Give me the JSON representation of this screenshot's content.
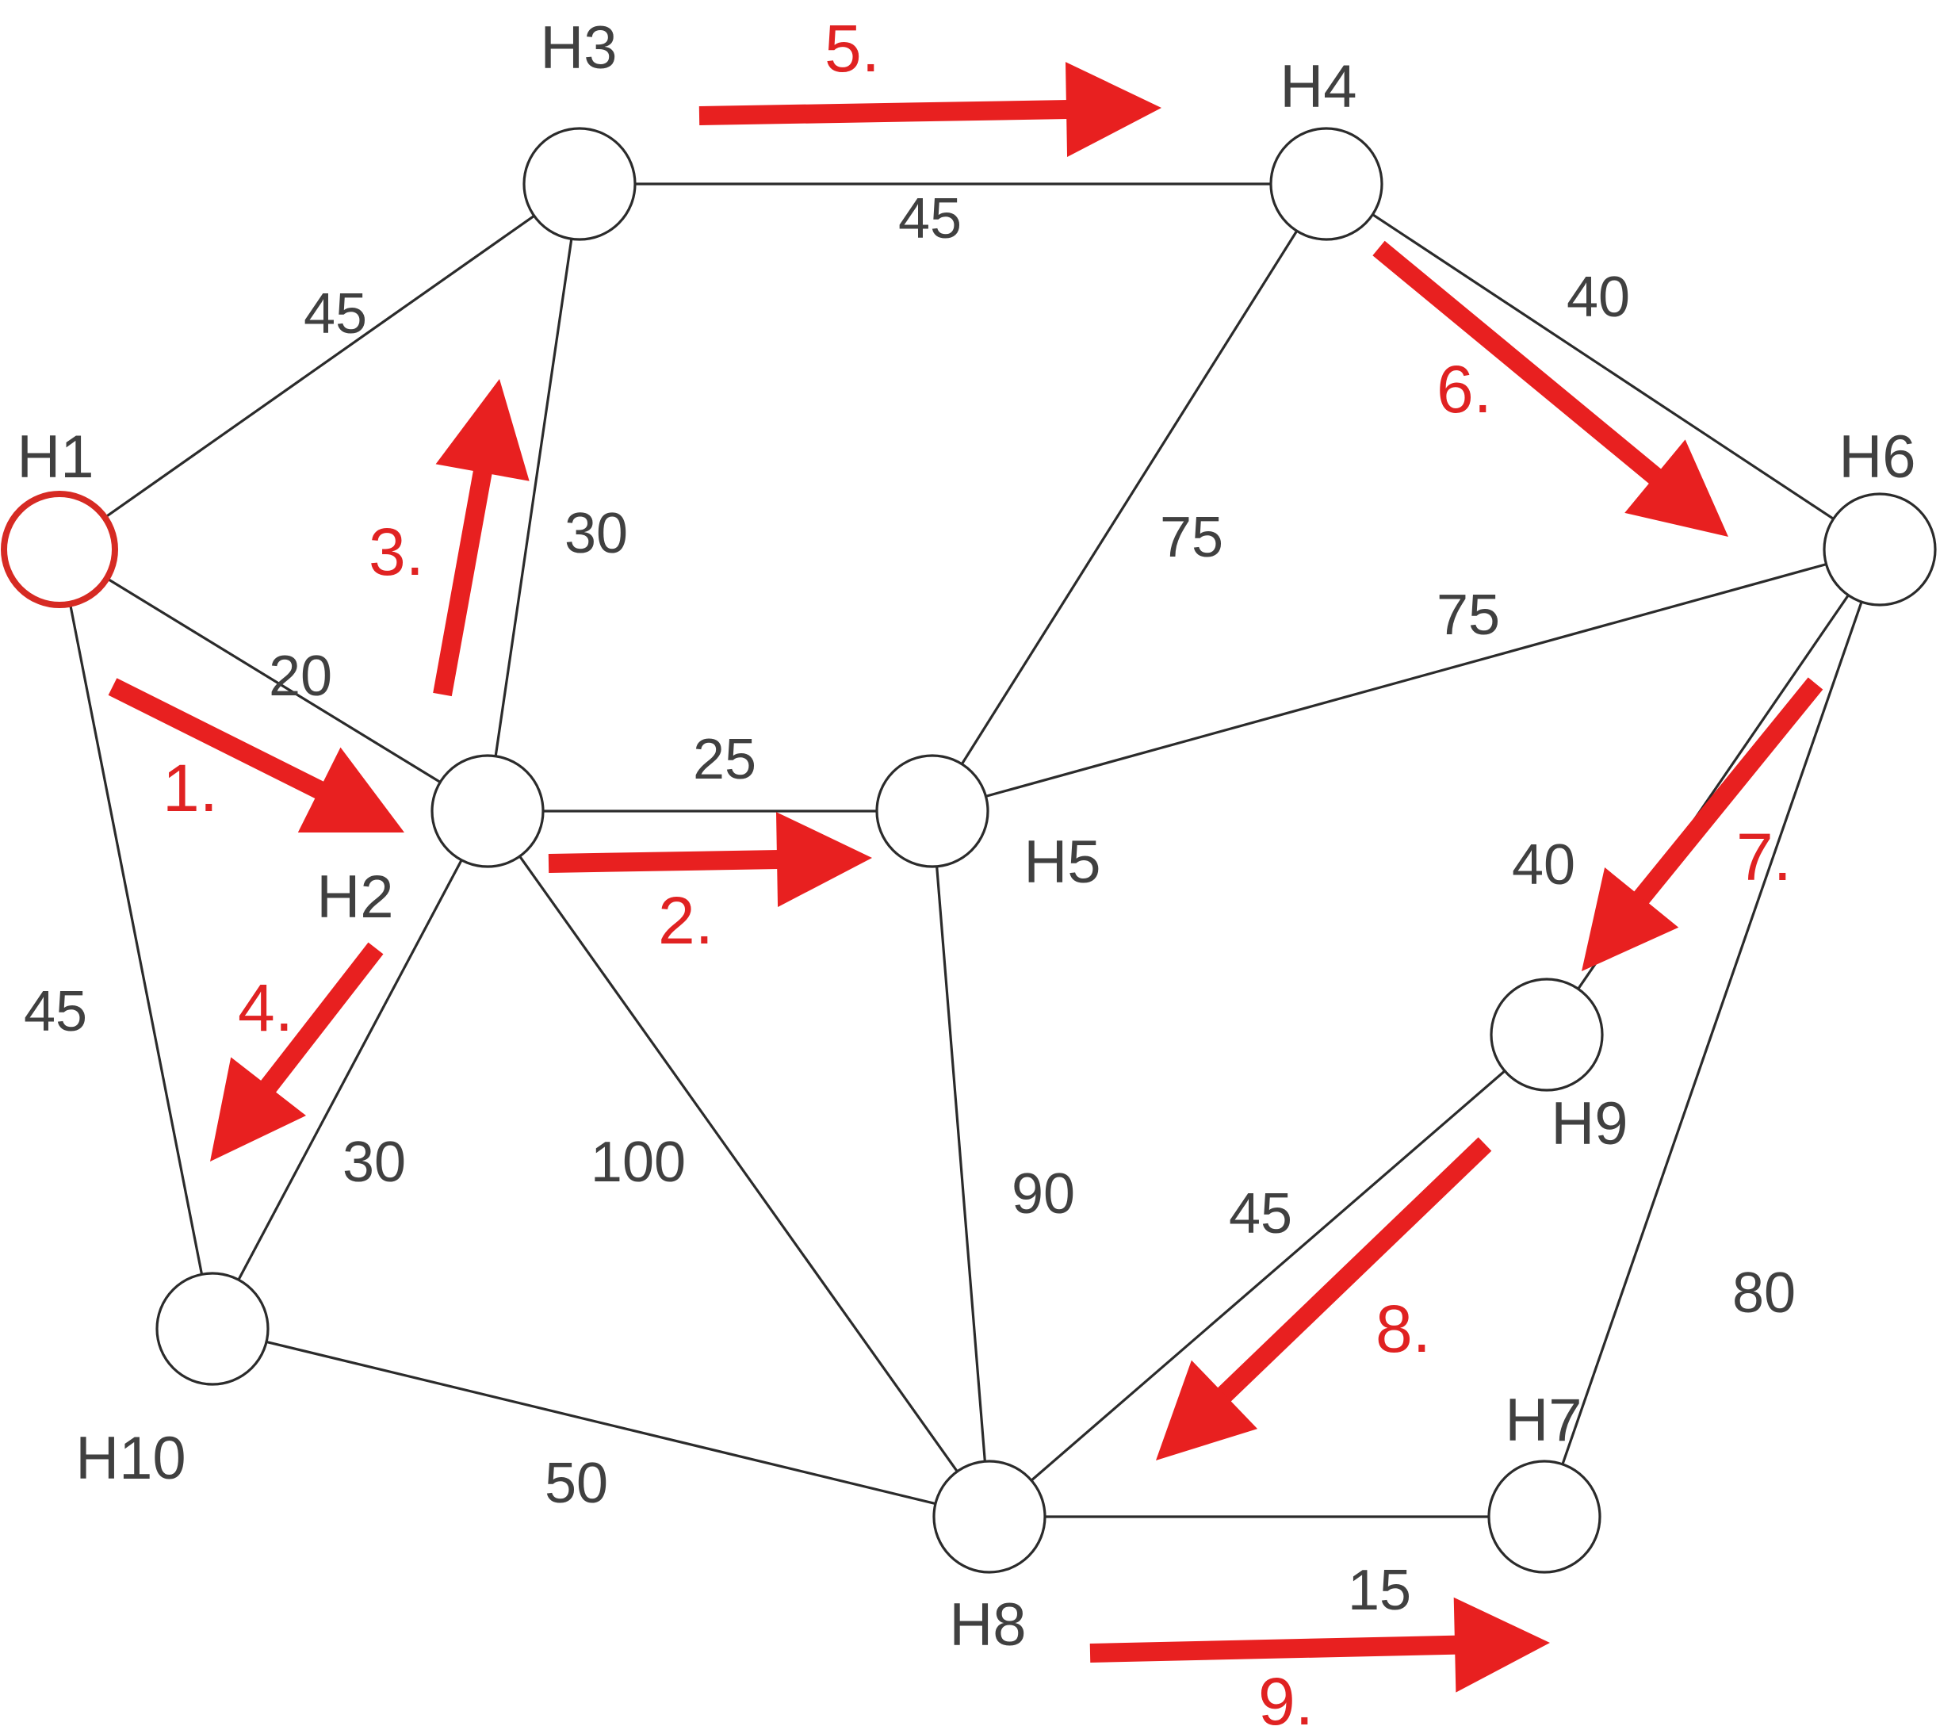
{
  "graph": {
    "nodes": [
      {
        "id": "H1",
        "label": "H1",
        "start": true
      },
      {
        "id": "H2",
        "label": "H2"
      },
      {
        "id": "H3",
        "label": "H3"
      },
      {
        "id": "H4",
        "label": "H4"
      },
      {
        "id": "H5",
        "label": "H5"
      },
      {
        "id": "H6",
        "label": "H6"
      },
      {
        "id": "H7",
        "label": "H7"
      },
      {
        "id": "H8",
        "label": "H8"
      },
      {
        "id": "H9",
        "label": "H9"
      },
      {
        "id": "H10",
        "label": "H10"
      }
    ],
    "edges": [
      {
        "from": "H1",
        "to": "H3",
        "weight": "45"
      },
      {
        "from": "H1",
        "to": "H2",
        "weight": "20"
      },
      {
        "from": "H1",
        "to": "H10",
        "weight": "45"
      },
      {
        "from": "H2",
        "to": "H3",
        "weight": "30"
      },
      {
        "from": "H2",
        "to": "H5",
        "weight": "25"
      },
      {
        "from": "H2",
        "to": "H10",
        "weight": "30"
      },
      {
        "from": "H2",
        "to": "H8",
        "weight": "100"
      },
      {
        "from": "H3",
        "to": "H4",
        "weight": "45"
      },
      {
        "from": "H4",
        "to": "H6",
        "weight": "40"
      },
      {
        "from": "H4",
        "to": "H5",
        "weight": "75"
      },
      {
        "from": "H5",
        "to": "H6",
        "weight": "75"
      },
      {
        "from": "H5",
        "to": "H8",
        "weight": "90"
      },
      {
        "from": "H6",
        "to": "H9",
        "weight": "40"
      },
      {
        "from": "H6",
        "to": "H7",
        "weight": "80"
      },
      {
        "from": "H9",
        "to": "H8",
        "weight": "45"
      },
      {
        "from": "H10",
        "to": "H8",
        "weight": "50"
      },
      {
        "from": "H8",
        "to": "H7",
        "weight": "15"
      }
    ],
    "steps": [
      {
        "label": "1.",
        "from": "H1",
        "to": "H2"
      },
      {
        "label": "2.",
        "from": "H2",
        "to": "H5"
      },
      {
        "label": "3.",
        "from": "H2",
        "to": "H3"
      },
      {
        "label": "4.",
        "from": "H2",
        "to": "H10"
      },
      {
        "label": "5.",
        "from": "H3",
        "to": "H4"
      },
      {
        "label": "6.",
        "from": "H4",
        "to": "H6"
      },
      {
        "label": "7.",
        "from": "H6",
        "to": "H9"
      },
      {
        "label": "8.",
        "from": "H9",
        "to": "H8"
      },
      {
        "label": "9.",
        "from": "H8",
        "to": "H7"
      }
    ]
  },
  "colors": {
    "start_node": "#d62a23",
    "arrow": "#e82020",
    "edge": "#2b2b2b",
    "text": "#404040"
  }
}
